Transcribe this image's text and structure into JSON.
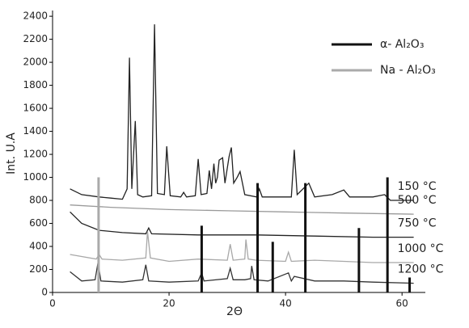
{
  "chart_data": {
    "type": "line",
    "x_label": "2Θ",
    "y_label": "Int. U.A",
    "xlim": [
      0,
      64
    ],
    "xticks": [
      0,
      20,
      40,
      60
    ],
    "ylim": [
      0,
      2450
    ],
    "yticks": [
      0,
      200,
      400,
      600,
      800,
      1000,
      1200,
      1400,
      1600,
      1800,
      2000,
      2200,
      2400
    ],
    "series": [
      {
        "name": "150 °C",
        "color": "#222222",
        "x": [
          3,
          5,
          8,
          10,
          12,
          12.8,
          13.2,
          13.6,
          14.2,
          14.6,
          15.5,
          17,
          17.5,
          18,
          19.2,
          19.6,
          20.2,
          22,
          22.5,
          23,
          24.5,
          25,
          25.5,
          26.5,
          26.9,
          27.3,
          27.7,
          28,
          28.3,
          28.6,
          29.2,
          29.6,
          30.3,
          30.7,
          31.1,
          31.7,
          32.2,
          33,
          35,
          35.5,
          36,
          41,
          41.5,
          42,
          44,
          45,
          48,
          50,
          51,
          55,
          57,
          58,
          62
        ],
        "values": [
          900,
          850,
          830,
          820,
          810,
          900,
          2040,
          900,
          1490,
          850,
          830,
          840,
          2330,
          860,
          850,
          1270,
          840,
          830,
          870,
          830,
          840,
          1160,
          850,
          860,
          1060,
          900,
          1120,
          950,
          1000,
          1150,
          1170,
          950,
          1180,
          1260,
          950,
          1000,
          1050,
          850,
          830,
          900,
          830,
          830,
          1240,
          850,
          950,
          830,
          850,
          890,
          830,
          830,
          850,
          800,
          800
        ]
      },
      {
        "name": "500 °C",
        "color": "#9a9a9a",
        "x": [
          3,
          10,
          20,
          30,
          40,
          50,
          62
        ],
        "values": [
          760,
          740,
          720,
          710,
          700,
          690,
          680
        ]
      },
      {
        "name": "750 °C",
        "color": "#222222",
        "x": [
          3,
          5,
          8,
          12,
          16,
          16.5,
          17,
          25,
          35,
          45,
          55,
          62
        ],
        "values": [
          700,
          600,
          540,
          520,
          510,
          560,
          510,
          500,
          500,
          490,
          480,
          480
        ]
      },
      {
        "name": "1000 °C",
        "color": "#a8a8a8",
        "x": [
          3,
          7.5,
          8,
          8.5,
          12,
          16,
          16.3,
          16.8,
          20,
          25,
          30,
          30.5,
          31,
          33,
          33.2,
          33.6,
          35,
          40,
          40.5,
          41,
          45,
          50,
          55,
          62
        ],
        "values": [
          330,
          290,
          330,
          290,
          280,
          300,
          530,
          300,
          270,
          290,
          280,
          420,
          280,
          290,
          460,
          290,
          280,
          270,
          350,
          270,
          280,
          270,
          260,
          260
        ]
      },
      {
        "name": "1200 °C",
        "color": "#333333",
        "x": [
          3,
          5,
          7.3,
          7.8,
          8.3,
          12,
          15.5,
          16,
          16.5,
          20,
          25,
          25.6,
          26,
          30,
          30.5,
          31,
          33,
          34,
          34.2,
          34.6,
          37,
          40.5,
          41,
          41.5,
          45,
          50,
          55,
          62
        ],
        "values": [
          180,
          100,
          110,
          260,
          100,
          90,
          110,
          240,
          100,
          90,
          100,
          170,
          100,
          120,
          210,
          110,
          110,
          120,
          230,
          110,
          100,
          170,
          100,
          140,
          100,
          100,
          90,
          80
        ]
      }
    ],
    "sticks": [
      {
        "name": "α- Al₂O₃",
        "color": "#111111",
        "x": [
          25.6,
          35.2,
          37.8,
          43.4,
          52.6,
          57.5,
          61.3
        ],
        "values": [
          580,
          950,
          440,
          950,
          560,
          1000,
          130
        ]
      },
      {
        "name": "Na - Al₂O₃",
        "color": "#aaaaaa",
        "x": [
          7.9
        ],
        "values": [
          1000
        ]
      }
    ]
  }
}
